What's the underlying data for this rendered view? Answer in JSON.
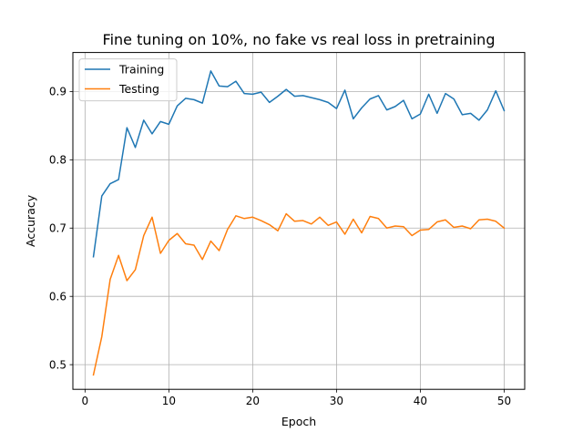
{
  "chart_data": {
    "type": "line",
    "title": "Fine tuning on 10%, no fake vs real loss in pretraining",
    "xlabel": "Epoch",
    "ylabel": "Accuracy",
    "xlim": [
      -1.45,
      52.45
    ],
    "ylim": [
      0.4639,
      0.9571
    ],
    "xticks": [
      0,
      10,
      20,
      30,
      40,
      50
    ],
    "yticks": [
      0.5,
      0.6,
      0.7,
      0.8,
      0.9
    ],
    "ytick_labels": [
      "0.5",
      "0.6",
      "0.7",
      "0.8",
      "0.9"
    ],
    "grid": true,
    "legend_position": "top-left",
    "x": [
      1,
      2,
      3,
      4,
      5,
      6,
      7,
      8,
      9,
      10,
      11,
      12,
      13,
      14,
      15,
      16,
      17,
      18,
      19,
      20,
      21,
      22,
      23,
      24,
      25,
      26,
      27,
      28,
      29,
      30,
      31,
      32,
      33,
      34,
      35,
      36,
      37,
      38,
      39,
      40,
      41,
      42,
      43,
      44,
      45,
      46,
      47,
      48,
      49,
      50
    ],
    "series": [
      {
        "name": "Training",
        "color": "#1f77b4",
        "values": [
          0.658,
          0.747,
          0.765,
          0.771,
          0.847,
          0.818,
          0.858,
          0.838,
          0.856,
          0.852,
          0.879,
          0.89,
          0.888,
          0.883,
          0.93,
          0.908,
          0.907,
          0.915,
          0.897,
          0.896,
          0.899,
          0.884,
          0.893,
          0.903,
          0.893,
          0.894,
          0.891,
          0.888,
          0.884,
          0.875,
          0.902,
          0.86,
          0.876,
          0.889,
          0.894,
          0.873,
          0.878,
          0.887,
          0.86,
          0.867,
          0.896,
          0.868,
          0.897,
          0.889,
          0.866,
          0.868,
          0.858,
          0.873,
          0.901,
          0.872
        ]
      },
      {
        "name": "Testing",
        "color": "#ff7f0e",
        "values": [
          0.485,
          0.541,
          0.625,
          0.66,
          0.623,
          0.639,
          0.689,
          0.716,
          0.663,
          0.682,
          0.692,
          0.677,
          0.675,
          0.654,
          0.681,
          0.667,
          0.698,
          0.718,
          0.714,
          0.716,
          0.711,
          0.705,
          0.696,
          0.721,
          0.71,
          0.711,
          0.706,
          0.716,
          0.704,
          0.709,
          0.691,
          0.713,
          0.693,
          0.717,
          0.714,
          0.7,
          0.703,
          0.702,
          0.689,
          0.697,
          0.698,
          0.709,
          0.712,
          0.701,
          0.703,
          0.699,
          0.712,
          0.713,
          0.71,
          0.7
        ]
      }
    ]
  }
}
